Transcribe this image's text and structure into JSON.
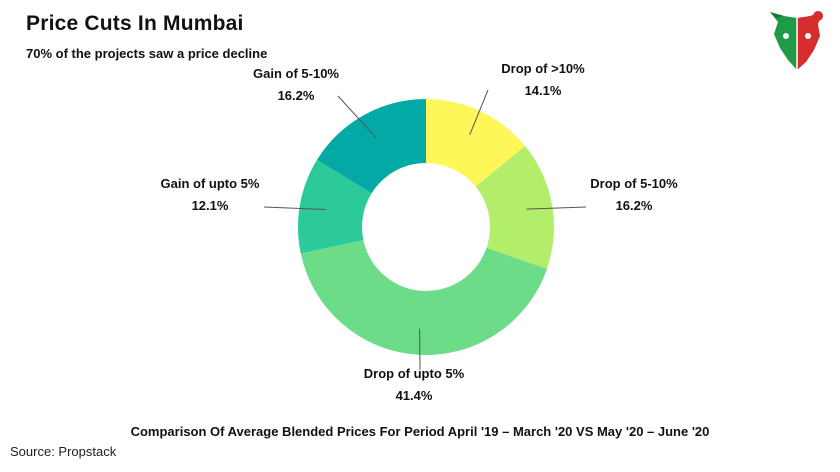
{
  "title": "Price Cuts In Mumbai",
  "subtitle": "70% of the projects saw a price decline",
  "footer_note": "Comparison Of Average Blended Prices For Period April '19 – March '20 VS May '20 – June '20",
  "source": "Source: Propstack",
  "chart_data": {
    "type": "pie",
    "donut": true,
    "title": "Price Cuts In Mumbai",
    "subtitle": "70% of the projects saw a price decline",
    "categories": [
      "Drop of >10%",
      "Drop of 5-10%",
      "Drop of upto 5%",
      "Gain of upto 5%",
      "Gain of 5-10%"
    ],
    "values": [
      14.1,
      16.2,
      41.4,
      12.1,
      16.2
    ],
    "value_labels": [
      "14.1%",
      "16.2%",
      "41.4%",
      "12.1%",
      "16.2%"
    ],
    "colors": [
      "#fdf75a",
      "#b3ee6a",
      "#6ddc88",
      "#2cc99a",
      "#03aaa5"
    ],
    "legend": "none"
  },
  "logo": {
    "icon": "bull-bear-logo-icon",
    "colors": [
      "#1f9a47",
      "#d62e2e"
    ]
  }
}
